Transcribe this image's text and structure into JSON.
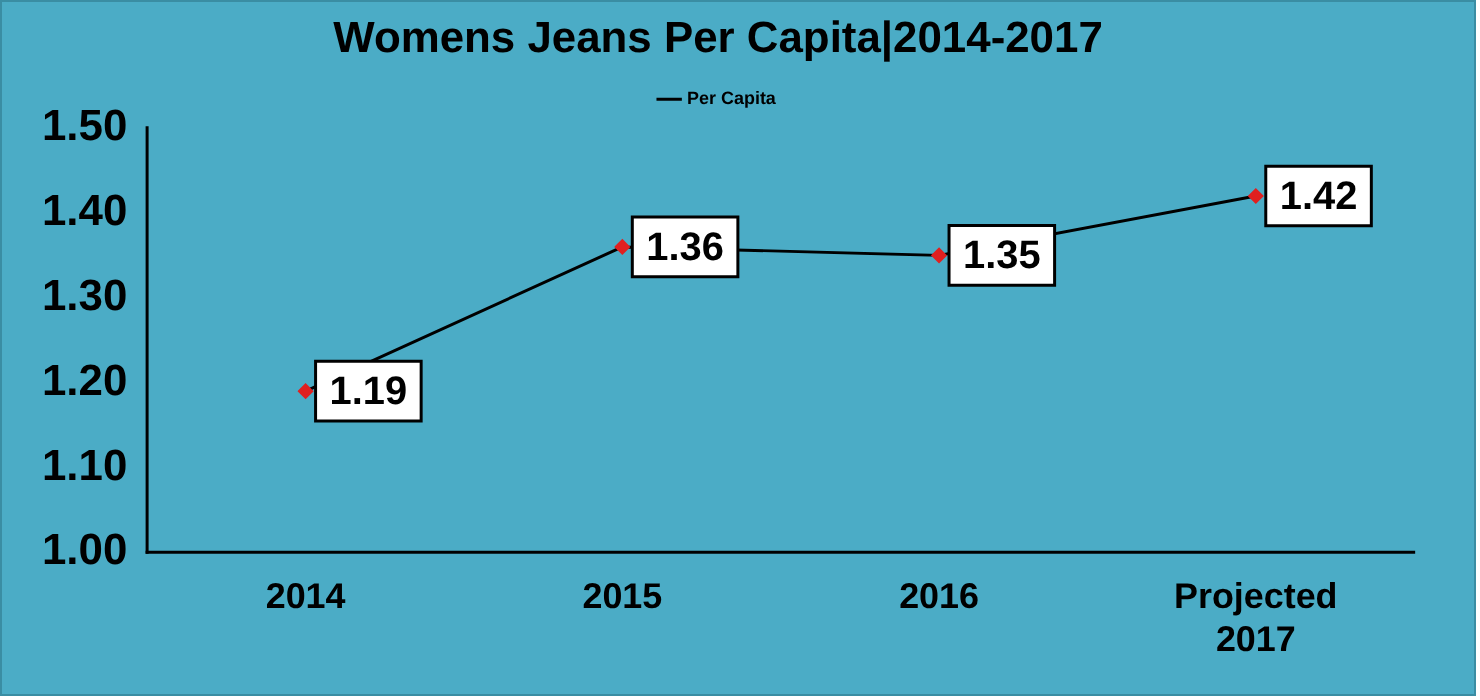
{
  "chart_data": {
    "type": "line",
    "title": "Womens Jeans Per Capita|2014-2017",
    "categories": [
      "2014",
      "2015",
      "2016",
      "Projected 2017"
    ],
    "series": [
      {
        "name": "Per Capita",
        "color": "#000000",
        "values": [
          1.19,
          1.36,
          1.35,
          1.42
        ]
      }
    ],
    "ylim": [
      1.0,
      1.5
    ],
    "yticks": [
      {
        "value": 1.0,
        "label": "1.00"
      },
      {
        "value": 1.1,
        "label": "1.10"
      },
      {
        "value": 1.2,
        "label": "1.20"
      },
      {
        "value": 1.3,
        "label": "1.30"
      },
      {
        "value": 1.4,
        "label": "1.40"
      },
      {
        "value": 1.5,
        "label": "1.50"
      }
    ],
    "grid": false,
    "legend": "top",
    "marker": "diamond",
    "data_labels": true
  }
}
